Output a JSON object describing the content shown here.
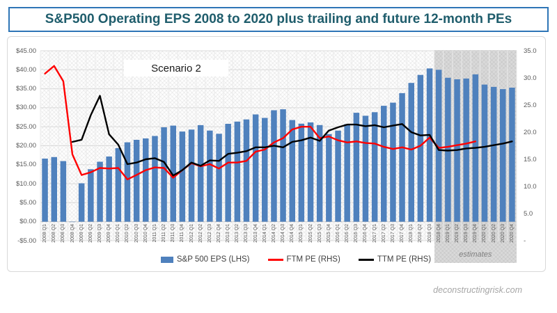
{
  "title": {
    "text": "S&P500 Operating EPS 2008 to 2020 plus trailing and future 12-month PEs"
  },
  "watermark": "deconstructingrisk.com",
  "colors": {
    "bar_blue": "#4F81BD",
    "ftm_red": "#FF0000",
    "ttm_black": "#000000",
    "title_text": "#1F5D6C",
    "title_border": "#2E75B6",
    "axis_text": "#595959",
    "gridline": "#D9D9D9",
    "estimates_bg": "#D9D9D9"
  },
  "chart_data": {
    "type": "combo",
    "categories": [
      "2008 Q1",
      "2008 Q2",
      "2008 Q3",
      "2008 Q4",
      "2009 Q1",
      "2009 Q2",
      "2009 Q3",
      "2009 Q4",
      "2010 Q1",
      "2010 Q2",
      "2010 Q3",
      "2010 Q4",
      "2011 Q1",
      "2011 Q2",
      "2011 Q3",
      "2011 Q4",
      "2012 Q1",
      "2012 Q2",
      "2012 Q3",
      "2012 Q4",
      "2013 Q1",
      "2013 Q2",
      "2013 Q3",
      "2013 Q4",
      "2014 Q1",
      "2014 Q2",
      "2014 Q3",
      "2014 Q4",
      "2015 Q1",
      "2015 Q2",
      "2015 Q3",
      "2015 Q4",
      "2016 Q1",
      "2016 Q2",
      "2016 Q3",
      "2016 Q4",
      "2017 Q1",
      "2017 Q2",
      "2017 Q3",
      "2017 Q4",
      "2018 Q1",
      "2018 Q2",
      "2018 Q3",
      "2018 Q4",
      "2019 Q1",
      "2019 Q2",
      "2019 Q3",
      "2019 Q4",
      "2020 Q1",
      "2020 Q2",
      "2020 Q3",
      "2020 Q4"
    ],
    "series": [
      {
        "name": "S&P 500 EPS (LHS)",
        "type": "bar",
        "axis": "left",
        "color": "#4F81BD",
        "values": [
          16.62,
          17.02,
          15.96,
          -0.09,
          10.11,
          13.81,
          15.78,
          17.16,
          19.38,
          20.9,
          21.56,
          21.93,
          22.56,
          24.86,
          25.29,
          23.73,
          24.24,
          25.43,
          24.0,
          23.15,
          25.77,
          26.36,
          26.92,
          28.25,
          27.32,
          29.34,
          29.6,
          26.75,
          25.81,
          26.14,
          25.44,
          23.06,
          23.97,
          25.7,
          28.69,
          27.9,
          28.82,
          30.51,
          31.33,
          33.85,
          36.54,
          38.65,
          40.34,
          40.0,
          37.9,
          37.5,
          37.7,
          38.8,
          36.1,
          35.5,
          34.9,
          35.3
        ]
      },
      {
        "name": "FTM PE (RHS)",
        "type": "line",
        "axis": "right",
        "color": "#FF0000",
        "values": [
          30.8,
          32.2,
          29.4,
          15.9,
          12.1,
          12.6,
          13.4,
          13.3,
          13.4,
          11.3,
          12.1,
          13.0,
          13.5,
          13.4,
          11.6,
          13.0,
          14.3,
          13.7,
          14.1,
          13.3,
          14.4,
          14.4,
          14.7,
          16.4,
          16.8,
          18.1,
          18.9,
          20.5,
          21.0,
          21.0,
          18.9,
          19.2,
          18.5,
          18.1,
          18.3,
          18.0,
          17.9,
          17.3,
          16.9,
          17.2,
          16.8,
          17.5,
          19.0,
          17.1,
          17.3,
          17.6,
          17.9,
          18.3,
          null,
          null,
          null,
          null
        ]
      },
      {
        "name": "TTM PE (RHS)",
        "type": "line",
        "axis": "right",
        "color": "#000000",
        "values": [
          null,
          null,
          null,
          18.2,
          18.6,
          23.1,
          26.7,
          19.6,
          17.7,
          14.1,
          14.4,
          15.0,
          15.2,
          14.5,
          12.0,
          13.0,
          14.4,
          13.8,
          14.8,
          14.7,
          16.0,
          16.2,
          16.5,
          17.2,
          17.2,
          17.5,
          17.2,
          18.2,
          18.5,
          19.0,
          18.4,
          20.3,
          20.9,
          21.4,
          21.4,
          21.1,
          21.3,
          20.9,
          21.2,
          21.5,
          20.0,
          19.4,
          19.5,
          16.7,
          16.6,
          16.7,
          17.0,
          17.1,
          17.3,
          17.6,
          17.9,
          18.3
        ]
      }
    ],
    "axis_left": {
      "min": -5,
      "max": 45,
      "tick_labels": [
        "$45.00",
        "$40.00",
        "$35.00",
        "$30.00",
        "$25.00",
        "$20.00",
        "$15.00",
        "$10.00",
        "$5.00",
        "$0.00",
        "-$5.00"
      ]
    },
    "axis_right": {
      "min": 0,
      "max": 35,
      "tick_labels": [
        "35.0",
        "30.0",
        "25.0",
        "20.0",
        "15.0",
        "10.0",
        "5.0",
        "-"
      ]
    },
    "estimates_start_category": "2018 Q4",
    "grid": true,
    "legend_position": "bottom",
    "annotations": {
      "scenario": "Scenario 2",
      "estimates": "estimates"
    }
  }
}
